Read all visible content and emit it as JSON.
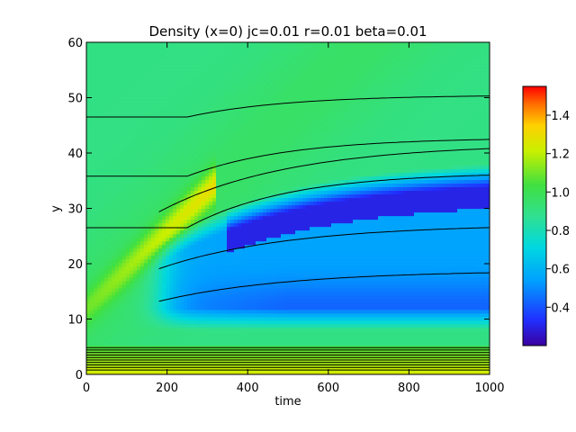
{
  "chart_data": {
    "type": "heatmap",
    "title": "Density (x=0) jc=0.01 r=0.01 beta=0.01",
    "xlabel": "time",
    "ylabel": "y",
    "xlim": [
      0,
      1000
    ],
    "ylim": [
      0,
      60
    ],
    "x_ticks": [
      "0",
      "200",
      "400",
      "600",
      "800",
      "1000"
    ],
    "y_ticks": [
      "0",
      "10",
      "20",
      "30",
      "40",
      "50",
      "60"
    ],
    "colorbar": {
      "range": [
        0.2,
        1.55
      ],
      "ticks": [
        "0.4",
        "0.6",
        "0.8",
        "1.0",
        "1.2",
        "1.4"
      ],
      "colormap": [
        "#3a00a0",
        "#2060ff",
        "#00c8ff",
        "#30e0a0",
        "#40e040",
        "#e8f000",
        "#ff9000",
        "#ff0000"
      ]
    },
    "features": {
      "background_density": 0.9,
      "dense_band": {
        "start_y": 12,
        "slope": 0.07,
        "peak_density": 1.3
      },
      "depletion_region": {
        "min_density": 0.25,
        "lower_edge_y": 8,
        "upper_edge_y_at_1000": 38
      },
      "contours_y_at_start": [
        46.5,
        35.8,
        26.5
      ]
    }
  }
}
